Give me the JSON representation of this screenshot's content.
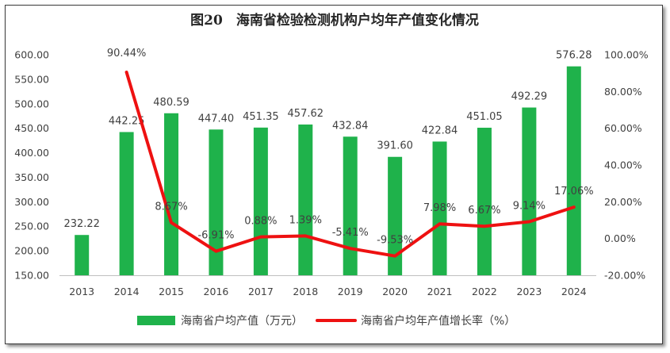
{
  "chart_data": {
    "type": "bar",
    "title": "图20　海南省检验检测机构户均年产值变化情况",
    "categories": [
      "2013",
      "2014",
      "2015",
      "2016",
      "2017",
      "2018",
      "2019",
      "2020",
      "2021",
      "2022",
      "2023",
      "2024"
    ],
    "series": [
      {
        "name": "海南省户均产值（万元）",
        "type": "bar",
        "axis": "left",
        "values": [
          232.22,
          442.25,
          480.59,
          447.4,
          451.35,
          457.62,
          432.84,
          391.6,
          422.84,
          451.05,
          492.29,
          576.28
        ],
        "labels": [
          "232.22",
          "442.25",
          "480.59",
          "447.40",
          "451.35",
          "457.62",
          "432.84",
          "391.60",
          "422.84",
          "451.05",
          "492.29",
          "576.28"
        ]
      },
      {
        "name": "海南省户均年产值增长率（%）",
        "type": "line",
        "axis": "right",
        "values": [
          null,
          90.44,
          8.67,
          -6.91,
          0.88,
          1.39,
          -5.41,
          -9.53,
          7.98,
          6.67,
          9.14,
          17.06
        ],
        "labels": [
          null,
          "90.44%",
          "8.67%",
          "-6.91%",
          "0.88%",
          "1.39%",
          "-5.41%",
          "-9.53%",
          "7.98%",
          "6.67%",
          "9.14%",
          "17.06%"
        ]
      }
    ],
    "left_axis": {
      "ylim": [
        150,
        600
      ],
      "ticks": [
        "150.00",
        "200.00",
        "250.00",
        "300.00",
        "350.00",
        "400.00",
        "450.00",
        "500.00",
        "550.00",
        "600.00"
      ]
    },
    "right_axis": {
      "ylim": [
        -20,
        100
      ],
      "ticks": [
        "-20.00%",
        "0.00%",
        "20.00%",
        "40.00%",
        "60.00%",
        "80.00%",
        "100.00%"
      ]
    },
    "grid": false,
    "legend": "bottom",
    "colors": {
      "bar": "#1fb24b",
      "line": "#ee1111",
      "text": "#404040",
      "axis": "#bfbfbf"
    }
  }
}
